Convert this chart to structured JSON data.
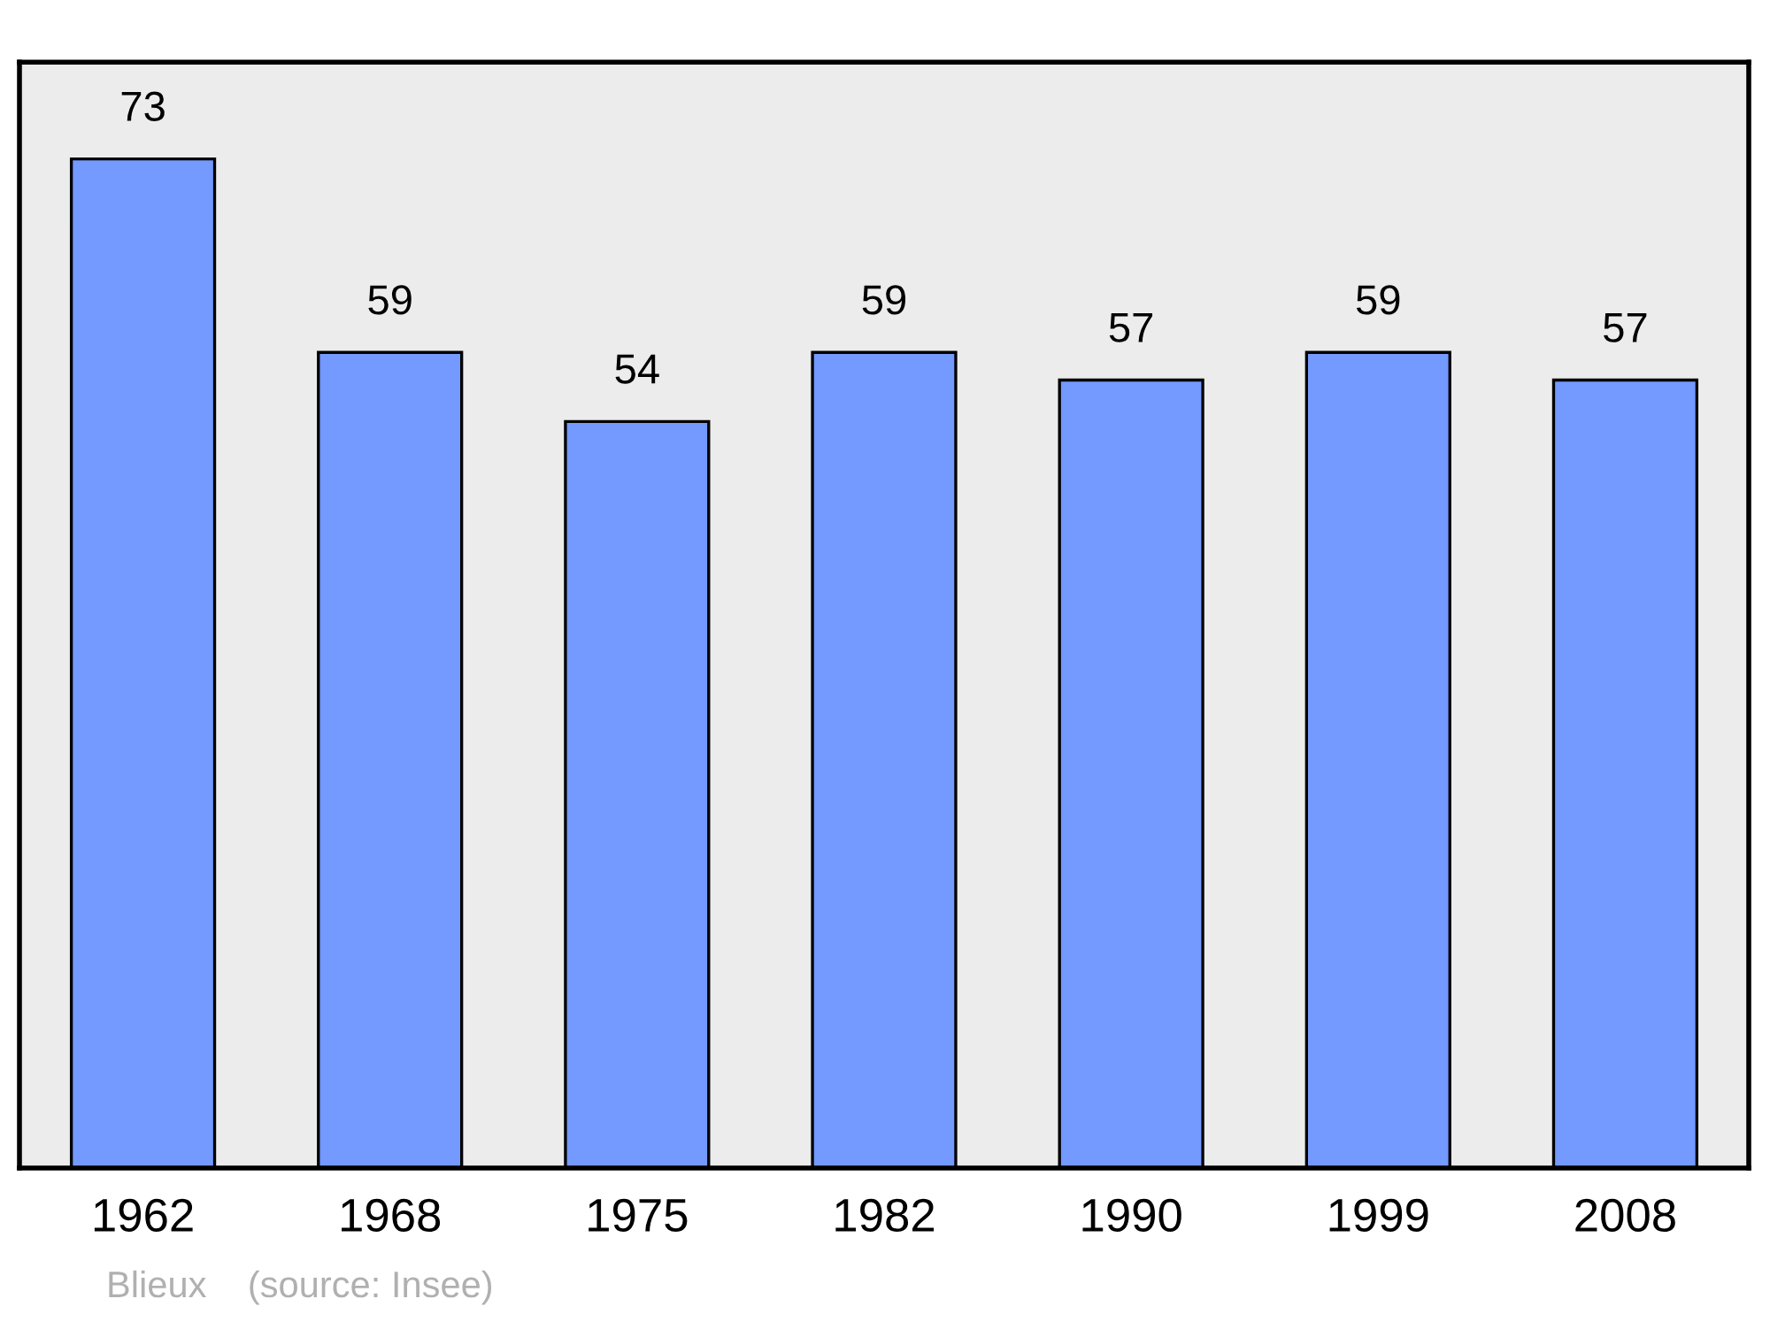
{
  "chart_data": {
    "type": "bar",
    "categories": [
      "1962",
      "1968",
      "1975",
      "1982",
      "1990",
      "1999",
      "2008"
    ],
    "values": [
      73,
      59,
      54,
      59,
      57,
      59,
      57
    ],
    "color": "#7499ff",
    "data_labels": true,
    "ylim": [
      0,
      80
    ],
    "tick_labels": "x",
    "grid": false,
    "legend": false,
    "annotations": [
      "Blieux    (source: Insee)"
    ]
  }
}
